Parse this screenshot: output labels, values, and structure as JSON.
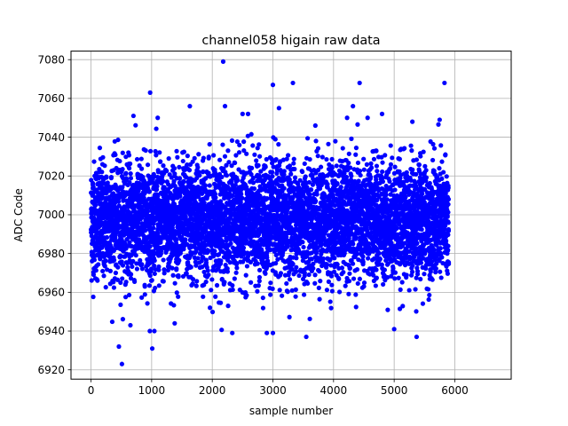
{
  "chart_data": {
    "type": "scatter",
    "title": "channel058 higain raw data",
    "xlabel": "sample number",
    "ylabel": "ADC Code",
    "xlim": [
      -330,
      6930
    ],
    "ylim": [
      6915.2,
      7084.4
    ],
    "x_ticks": [
      "0",
      "1000",
      "2000",
      "3000",
      "4000",
      "5000",
      "6000"
    ],
    "y_ticks": [
      "6920",
      "6940",
      "6960",
      "6980",
      "7000",
      "7020",
      "7040",
      "7060",
      "7080"
    ],
    "grid": true,
    "marker_color": "#0000ff",
    "series": [
      {
        "n_points": 5900,
        "x_range": [
          0,
          5900
        ],
        "center": 6997,
        "std": 15,
        "points": [
          {
            "x": 2180,
            "y": 7079
          },
          {
            "x": 975,
            "y": 7063
          },
          {
            "x": 3000,
            "y": 7067
          },
          {
            "x": 3330,
            "y": 7068
          },
          {
            "x": 4430,
            "y": 7068
          },
          {
            "x": 5830,
            "y": 7068
          },
          {
            "x": 460,
            "y": 6932
          },
          {
            "x": 510,
            "y": 6923
          },
          {
            "x": 1010,
            "y": 6931
          },
          {
            "x": 970,
            "y": 6940
          },
          {
            "x": 650,
            "y": 6943
          },
          {
            "x": 1380,
            "y": 6944
          },
          {
            "x": 2330,
            "y": 6939
          },
          {
            "x": 2900,
            "y": 6939
          },
          {
            "x": 3000,
            "y": 6939
          },
          {
            "x": 3550,
            "y": 6937
          },
          {
            "x": 5370,
            "y": 6937
          },
          {
            "x": 5000,
            "y": 6941
          },
          {
            "x": 2210,
            "y": 7056
          },
          {
            "x": 1630,
            "y": 7056
          },
          {
            "x": 4320,
            "y": 7056
          },
          {
            "x": 3100,
            "y": 7055
          },
          {
            "x": 700,
            "y": 7051
          },
          {
            "x": 1100,
            "y": 7050
          },
          {
            "x": 2500,
            "y": 7052
          },
          {
            "x": 2590,
            "y": 7052
          },
          {
            "x": 4800,
            "y": 7052
          },
          {
            "x": 5300,
            "y": 7048
          },
          {
            "x": 5750,
            "y": 7049
          },
          {
            "x": 3700,
            "y": 7046
          }
        ]
      }
    ]
  }
}
